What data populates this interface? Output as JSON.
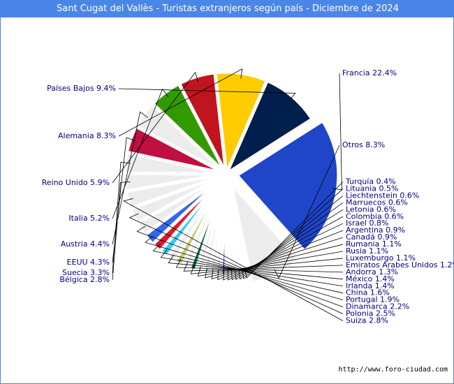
{
  "chart_data": {
    "type": "pie",
    "title": "Sant Cugat del Vallès - Turistas extranjeros según país - Diciembre de 2024",
    "unit": "%",
    "slices": [
      {
        "label": "Francia",
        "display": "Francia 22.4%",
        "value": 22.4,
        "color": "#1f45c8",
        "explode": true
      },
      {
        "label": "Otros",
        "display": "Otros 8.3%",
        "value": 8.3,
        "color": "#ececec",
        "explode": true
      },
      {
        "label": "Turquía",
        "display": "Turquía 0.4%",
        "value": 0.4,
        "color": "#dd2222"
      },
      {
        "label": "Lituania",
        "display": "Lituania 0.5%",
        "value": 0.5,
        "color": "#1a3c9c"
      },
      {
        "label": "Liechtenstein",
        "display": "Liechtenstein 0.6%",
        "value": 0.6,
        "color": "#ececec"
      },
      {
        "label": "Marruecos",
        "display": "Marruecos 0.6%",
        "value": 0.6,
        "color": "#b8d8f4"
      },
      {
        "label": "Letonia",
        "display": "Letonia 0.6%",
        "value": 0.6,
        "color": "#1f5be0"
      },
      {
        "label": "Colombia",
        "display": "Colombia 0.6%",
        "value": 0.6,
        "color": "#ffd500"
      },
      {
        "label": "Israel",
        "display": "Israel 0.8%",
        "value": 0.8,
        "color": "#1f5be0"
      },
      {
        "label": "Argentina",
        "display": "Argentina 0.9%",
        "value": 0.9,
        "color": "#ececec"
      },
      {
        "label": "Canadá",
        "display": "Canadá 0.9%",
        "value": 0.9,
        "color": "#ececec"
      },
      {
        "label": "Rumania",
        "display": "Rumania 1.1%",
        "value": 1.1,
        "color": "#ececec"
      },
      {
        "label": "Rusia",
        "display": "Rusia 1.1%",
        "value": 1.1,
        "color": "#ececec"
      },
      {
        "label": "Luxemburgo",
        "display": "Luxemburgo 1.1%",
        "value": 1.1,
        "color": "#006b3f"
      },
      {
        "label": "Emiratos Arabes Unidos",
        "display": "Emiratos Arabes Unidos 1.2%",
        "value": 1.2,
        "color": "#ececec"
      },
      {
        "label": "Andorra",
        "display": "Andorra 1.3%",
        "value": 1.3,
        "color": "#cccc77"
      },
      {
        "label": "México",
        "display": "México 1.4%",
        "value": 1.4,
        "color": "#ececec"
      },
      {
        "label": "Irlanda",
        "display": "Irlanda 1.4%",
        "value": 1.4,
        "color": "#33ccff"
      },
      {
        "label": "China",
        "display": "China 1.6%",
        "value": 1.6,
        "color": "#dd1a2a"
      },
      {
        "label": "Portugal",
        "display": "Portugal 1.9%",
        "value": 1.9,
        "color": "#3366ee"
      },
      {
        "label": "Dinamarca",
        "display": "Dinamarca 2.2%",
        "value": 2.2,
        "color": "#ececec"
      },
      {
        "label": "Polonia",
        "display": "Polonia 2.5%",
        "value": 2.5,
        "color": "#ececec"
      },
      {
        "label": "Suiza",
        "display": "Suiza 2.8%",
        "value": 2.8,
        "color": "#ececec"
      },
      {
        "label": "Bélgica",
        "display": "Bélgica 2.8%",
        "value": 2.8,
        "color": "#ececec"
      },
      {
        "label": "Suecia",
        "display": "Suecia 3.3%",
        "value": 3.3,
        "color": "#ececec"
      },
      {
        "label": "EEUU",
        "display": "EEUU 4.3%",
        "value": 4.3,
        "color": "#c01040"
      },
      {
        "label": "Austria",
        "display": "Austria 4.4%",
        "value": 4.4,
        "color": "#ececec"
      },
      {
        "label": "Italia",
        "display": "Italia 5.2%",
        "value": 5.2,
        "color": "#339900"
      },
      {
        "label": "Reino Unido",
        "display": "Reino Unido 5.9%",
        "value": 5.9,
        "color": "#c0141e"
      },
      {
        "label": "Alemania",
        "display": "Alemania 8.3%",
        "value": 8.3,
        "color": "#ffcc00"
      },
      {
        "label": "Países Bajos",
        "display": "Países Bajos 9.4%",
        "value": 9.4,
        "color": "#001f4d"
      }
    ]
  },
  "footer": {
    "url": "http://www.foro-ciudad.com"
  }
}
